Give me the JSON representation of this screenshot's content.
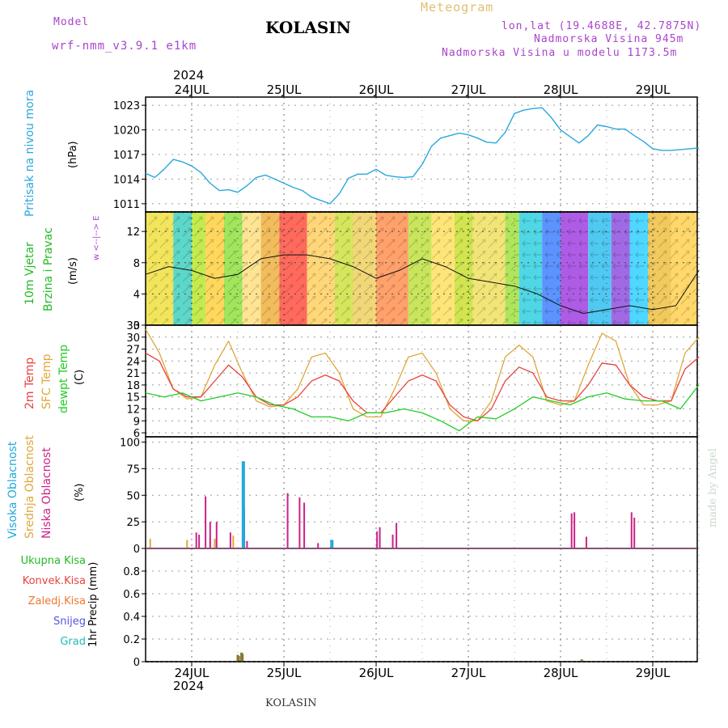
{
  "header": {
    "model_label": "Model",
    "model_name": "wrf-nmm_v3.9.1 e1km",
    "title": "KOLASIN",
    "meteogram": "Meteogram",
    "lonlat": "lon,lat (19.4688E, 42.7875N)",
    "elevation": "Nadmorska Visina 945m",
    "model_elevation": "Nadmorska Visina u modelu 1173.5m",
    "year_top": "2024",
    "year_bottom": "2024",
    "footer": "KOLASIN",
    "watermark": "made by Angel"
  },
  "colors": {
    "pressure": "#2aa7de",
    "wind_label": "#22bb22",
    "temp2m": "#e8433f",
    "sfc": "#e0a63a",
    "dewpt": "#22cc22",
    "high_cloud": "#22aadd",
    "mid_cloud": "#e0a63a",
    "low_cloud": "#cc2288",
    "compass": "#aa44cc"
  },
  "panels": {
    "pressure": {
      "label": "Pritisak na nivou mora",
      "unit": "(hPa)"
    },
    "wind": {
      "label1": "10m Vjetar",
      "label2": "Brzina i Pravac",
      "unit": "(m/s)",
      "compass": "w <--|--> E"
    },
    "temp": {
      "label1": "2m Temp",
      "label2": "SFC Temp",
      "label3": "dewpt Temp",
      "unit": "(C)"
    },
    "cloud": {
      "label1": "Visoka Oblacnost",
      "label2": "Srednja Oblacnost",
      "label3": "Niska Oblacnost",
      "unit": "(%)"
    },
    "precip": {
      "unit": "1hr Precip (mm)",
      "legend": [
        "Ukupna Kisa",
        "Konvek.Kisa",
        "Zaledj.Kisa",
        "Snijeg",
        "Grad"
      ],
      "legend_colors": [
        "#22bb22",
        "#e8433f",
        "#f07830",
        "#5555dd",
        "#22bbbb"
      ]
    }
  },
  "chart_data": [
    {
      "type": "line",
      "title": "",
      "ylabel": "Pritisak na nivou mora (hPa)",
      "categories": [
        "24JUL",
        "25JUL",
        "26JUL",
        "27JUL",
        "28JUL",
        "29JUL"
      ],
      "ylim": [
        1010,
        1024
      ],
      "yticks": [
        1011,
        1014,
        1017,
        1020,
        1023
      ],
      "grid": true,
      "series": [
        {
          "x": [
            -0.5,
            -0.4,
            -0.3,
            -0.2,
            -0.1,
            0,
            0.1,
            0.2,
            0.3,
            0.4,
            0.5,
            0.6,
            0.7,
            0.8,
            0.9,
            1,
            1.1,
            1.2,
            1.3,
            1.4,
            1.5,
            1.6,
            1.7,
            1.8,
            1.9,
            2,
            2.1,
            2.2,
            2.3,
            2.4,
            2.5,
            2.6,
            2.7,
            2.8,
            2.9,
            3,
            3.1,
            3.2,
            3.3,
            3.4,
            3.5,
            3.6,
            3.7,
            3.8,
            3.9,
            4,
            4.1,
            4.2,
            4.3,
            4.4,
            4.5,
            4.6,
            4.7,
            4.8,
            4.9,
            5,
            5.1,
            5.2,
            5.3,
            5.4,
            5.5
          ],
          "values": [
            1014.7,
            1014.2,
            1015.2,
            1016.4,
            1016.1,
            1015.6,
            1014.8,
            1013.5,
            1012.6,
            1012.7,
            1012.4,
            1013.2,
            1014.2,
            1014.5,
            1014.0,
            1013.5,
            1013.0,
            1012.6,
            1011.8,
            1011.4,
            1011.0,
            1012.2,
            1014.1,
            1014.6,
            1014.6,
            1015.2,
            1014.5,
            1014.3,
            1014.2,
            1014.3,
            1015.8,
            1018.0,
            1019.0,
            1019.3,
            1019.6,
            1019.4,
            1019.0,
            1018.5,
            1018.4,
            1019.7,
            1022.0,
            1022.4,
            1022.6,
            1022.7,
            1021.5,
            1020.0,
            1019.2,
            1018.4,
            1019.3,
            1020.6,
            1020.4,
            1020.1,
            1020.1,
            1019.3,
            1018.6,
            1017.7,
            1017.5,
            1017.5,
            1017.6,
            1017.7,
            1017.8
          ]
        }
      ]
    },
    {
      "type": "line",
      "title": "",
      "ylabel": "10m Vjetar Brzina i Pravac (m/s)",
      "categories": [
        "24JUL",
        "25JUL",
        "26JUL",
        "27JUL",
        "28JUL",
        "29JUL"
      ],
      "ylim": [
        0,
        14.5
      ],
      "yticks": [
        0,
        4,
        8,
        12
      ],
      "grid": true,
      "series": [
        {
          "x": [
            -0.5,
            -0.25,
            0,
            0.25,
            0.5,
            0.75,
            1,
            1.25,
            1.5,
            1.75,
            2,
            2.25,
            2.5,
            2.75,
            3,
            3.25,
            3.5,
            3.75,
            4,
            4.25,
            4.5,
            4.75,
            5,
            5.25,
            5.5
          ],
          "values": [
            6.5,
            7.5,
            7,
            6,
            6.5,
            8.5,
            9,
            9,
            8.5,
            7.5,
            6,
            7,
            8.5,
            7.5,
            6,
            5.5,
            5,
            4,
            2.5,
            1.5,
            2,
            2.5,
            2,
            2.5,
            7
          ]
        }
      ]
    },
    {
      "type": "line",
      "title": "",
      "ylabel": "Temp (C)",
      "categories": [
        "24JUL",
        "25JUL",
        "26JUL",
        "27JUL",
        "28JUL",
        "29JUL"
      ],
      "ylim": [
        5,
        33
      ],
      "yticks": [
        6,
        9,
        12,
        15,
        18,
        21,
        24,
        27,
        30,
        33
      ],
      "grid": true,
      "series": [
        {
          "name": "2m Temp",
          "x": [
            -0.5,
            -0.35,
            -0.2,
            -0.05,
            0.1,
            0.25,
            0.4,
            0.55,
            0.7,
            0.85,
            1,
            1.15,
            1.3,
            1.45,
            1.6,
            1.75,
            1.9,
            2.05,
            2.2,
            2.35,
            2.5,
            2.65,
            2.8,
            2.95,
            3.1,
            3.25,
            3.4,
            3.55,
            3.7,
            3.85,
            4,
            4.15,
            4.3,
            4.45,
            4.6,
            4.75,
            4.9,
            5.05,
            5.2,
            5.35,
            5.5
          ],
          "values": [
            26,
            24,
            17,
            15,
            15,
            19,
            23,
            20,
            15,
            13,
            13,
            15,
            19,
            20.5,
            19,
            14,
            11,
            11,
            15,
            19,
            20.5,
            19,
            13,
            10,
            9,
            12,
            19,
            22.5,
            21,
            15,
            14,
            14,
            18,
            23.5,
            23,
            18,
            15,
            14,
            14,
            22,
            25
          ]
        },
        {
          "name": "SFC Temp",
          "x": [
            -0.5,
            -0.35,
            -0.2,
            -0.05,
            0.1,
            0.25,
            0.4,
            0.55,
            0.7,
            0.85,
            1,
            1.15,
            1.3,
            1.45,
            1.6,
            1.75,
            1.9,
            2.05,
            2.2,
            2.35,
            2.5,
            2.65,
            2.8,
            2.95,
            3.1,
            3.25,
            3.4,
            3.55,
            3.7,
            3.85,
            4,
            4.15,
            4.3,
            4.45,
            4.6,
            4.75,
            4.9,
            5.05,
            5.2,
            5.35,
            5.5
          ],
          "values": [
            32,
            26,
            17,
            14.5,
            15,
            23,
            29,
            21,
            14,
            12.5,
            13,
            17,
            25,
            26,
            21,
            12,
            10,
            10,
            17,
            25,
            26,
            21,
            12,
            9,
            9,
            14,
            25,
            28,
            25,
            14,
            13,
            14,
            23,
            31,
            29,
            18,
            13,
            13,
            14,
            26,
            30
          ]
        },
        {
          "name": "dewpt Temp",
          "x": [
            -0.5,
            -0.3,
            -0.1,
            0.1,
            0.3,
            0.5,
            0.7,
            0.9,
            1.1,
            1.3,
            1.5,
            1.7,
            1.9,
            2.1,
            2.3,
            2.5,
            2.7,
            2.9,
            3.1,
            3.3,
            3.5,
            3.7,
            3.9,
            4.1,
            4.3,
            4.5,
            4.7,
            4.9,
            5.1,
            5.3,
            5.5
          ],
          "values": [
            16,
            15,
            16,
            14,
            15,
            16,
            15,
            13,
            12,
            10,
            10,
            9,
            11,
            11,
            12,
            11,
            9,
            6.5,
            10,
            9.5,
            12,
            15,
            14,
            13,
            15,
            16,
            14.5,
            14,
            14,
            12,
            18
          ]
        }
      ]
    },
    {
      "type": "bar",
      "title": "",
      "ylabel": "Oblacnost (%)",
      "categories": [
        "24JUL",
        "25JUL",
        "26JUL",
        "27JUL",
        "28JUL",
        "29JUL"
      ],
      "ylim": [
        0,
        105
      ],
      "yticks": [
        0,
        25,
        50,
        75,
        100
      ],
      "grid": true,
      "series": [
        {
          "name": "Visoka Oblacnost",
          "x": [
            0.56,
            1.52
          ],
          "values": [
            82,
            8
          ]
        },
        {
          "name": "Srednja Oblacnost",
          "x": [
            -0.45,
            -0.05,
            0.2,
            0.25,
            0.45
          ],
          "values": [
            9,
            8,
            10,
            9,
            12
          ]
        },
        {
          "name": "Niska Oblacnost",
          "x": [
            0.05,
            0.08,
            0.15,
            0.2,
            0.27,
            0.42,
            0.57,
            0.6,
            1.04,
            1.17,
            1.22,
            1.37,
            2.01,
            2.04,
            2.18,
            2.22,
            4.12,
            4.15,
            4.28,
            4.77,
            4.8
          ],
          "values": [
            15,
            13,
            49,
            25,
            25,
            15,
            38,
            7,
            52,
            48,
            43,
            5,
            16,
            20,
            13,
            24,
            33,
            34,
            11,
            34,
            29
          ]
        }
      ]
    },
    {
      "type": "bar",
      "title": "",
      "ylabel": "1hr Precip (mm)",
      "categories": [
        "24JUL",
        "25JUL",
        "26JUL",
        "27JUL",
        "28JUL",
        "29JUL"
      ],
      "ylim": [
        0,
        1
      ],
      "yticks": [
        0,
        0.2,
        0.4,
        0.6,
        0.8
      ],
      "grid": true,
      "series": [
        {
          "name": "Ukupna Kisa",
          "x": [
            0.5,
            0.54,
            4.23
          ],
          "values": [
            0.06,
            0.08,
            0.02
          ]
        },
        {
          "name": "Konvek.Kisa",
          "x": [
            0.51,
            0.55
          ],
          "values": [
            0.05,
            0.07
          ]
        }
      ]
    }
  ]
}
